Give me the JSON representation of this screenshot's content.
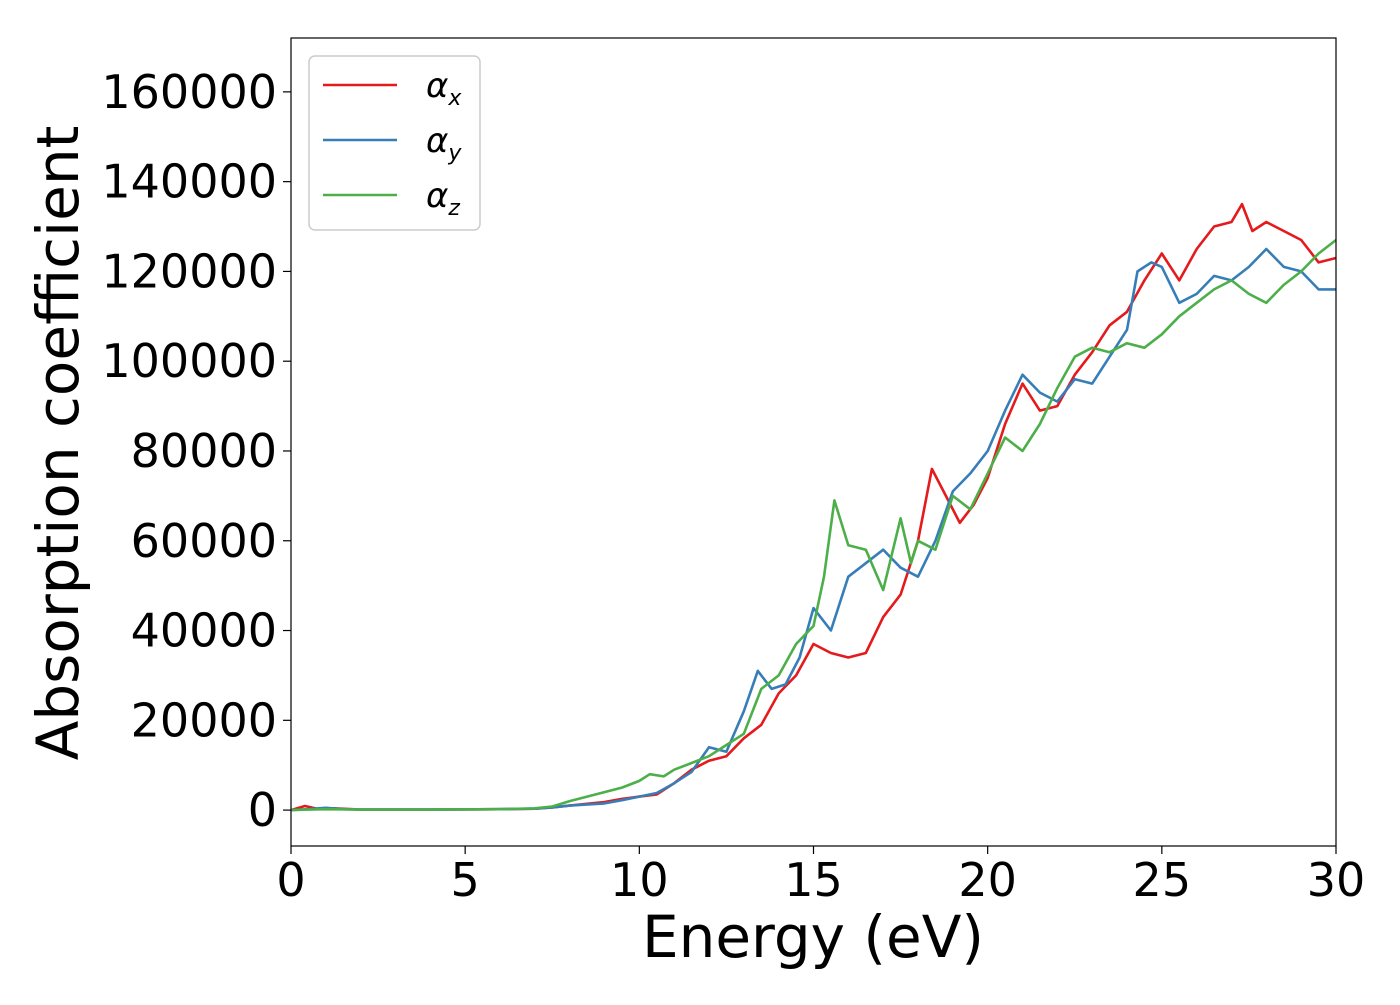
{
  "chart_data": {
    "type": "line",
    "title": "",
    "xlabel": "Energy (eV)",
    "ylabel": "Absorption coefficient",
    "xlim": [
      0,
      30
    ],
    "ylim": [
      -8000,
      172000
    ],
    "xticks": [
      0,
      5,
      10,
      15,
      20,
      25,
      30
    ],
    "xtick_labels": [
      "0",
      "5",
      "10",
      "15",
      "20",
      "25",
      "30"
    ],
    "yticks": [
      0,
      20000,
      40000,
      60000,
      80000,
      100000,
      120000,
      140000,
      160000
    ],
    "ytick_labels": [
      "0",
      "20000",
      "40000",
      "60000",
      "80000",
      "100000",
      "120000",
      "140000",
      "160000"
    ],
    "grid": false,
    "legend_position": "top-left",
    "series": [
      {
        "name": "αx",
        "legend_base": "α",
        "legend_sub": "x",
        "color": "#e41a1c",
        "points": [
          [
            0,
            0
          ],
          [
            0.4,
            900
          ],
          [
            0.8,
            200
          ],
          [
            1.2,
            400
          ],
          [
            2,
            100
          ],
          [
            4,
            100
          ],
          [
            6,
            200
          ],
          [
            7,
            300
          ],
          [
            7.5,
            600
          ],
          [
            8,
            1000
          ],
          [
            9,
            1800
          ],
          [
            9.5,
            2500
          ],
          [
            10,
            3000
          ],
          [
            10.5,
            3500
          ],
          [
            11,
            6000
          ],
          [
            11.5,
            9000
          ],
          [
            12,
            11000
          ],
          [
            12.5,
            12000
          ],
          [
            13,
            16000
          ],
          [
            13.5,
            19000
          ],
          [
            14,
            26000
          ],
          [
            14.5,
            30000
          ],
          [
            15,
            37000
          ],
          [
            15.5,
            35000
          ],
          [
            16,
            34000
          ],
          [
            16.5,
            35000
          ],
          [
            17,
            43000
          ],
          [
            17.5,
            48000
          ],
          [
            18,
            60000
          ],
          [
            18.4,
            76000
          ],
          [
            18.8,
            70000
          ],
          [
            19.2,
            64000
          ],
          [
            19.6,
            68000
          ],
          [
            20,
            74000
          ],
          [
            20.5,
            86000
          ],
          [
            21,
            95000
          ],
          [
            21.5,
            89000
          ],
          [
            22,
            90000
          ],
          [
            22.5,
            97000
          ],
          [
            23,
            102000
          ],
          [
            23.5,
            108000
          ],
          [
            24,
            111000
          ],
          [
            24.5,
            118000
          ],
          [
            25,
            124000
          ],
          [
            25.5,
            118000
          ],
          [
            26,
            125000
          ],
          [
            26.5,
            130000
          ],
          [
            27,
            131000
          ],
          [
            27.3,
            135000
          ],
          [
            27.6,
            129000
          ],
          [
            28,
            131000
          ],
          [
            28.5,
            129000
          ],
          [
            29,
            127000
          ],
          [
            29.5,
            122000
          ],
          [
            30,
            123000
          ]
        ]
      },
      {
        "name": "αy",
        "legend_base": "α",
        "legend_sub": "y",
        "color": "#377eb8",
        "points": [
          [
            0,
            0
          ],
          [
            0.5,
            200
          ],
          [
            1,
            500
          ],
          [
            1.5,
            200
          ],
          [
            2,
            100
          ],
          [
            4,
            100
          ],
          [
            6,
            200
          ],
          [
            7,
            300
          ],
          [
            7.5,
            600
          ],
          [
            8,
            1000
          ],
          [
            9,
            1500
          ],
          [
            9.5,
            2200
          ],
          [
            10,
            3000
          ],
          [
            10.5,
            3800
          ],
          [
            11,
            6000
          ],
          [
            11.5,
            8500
          ],
          [
            12,
            14000
          ],
          [
            12.5,
            13000
          ],
          [
            13,
            22000
          ],
          [
            13.4,
            31000
          ],
          [
            13.8,
            27000
          ],
          [
            14.2,
            28000
          ],
          [
            14.6,
            34000
          ],
          [
            15,
            45000
          ],
          [
            15.5,
            40000
          ],
          [
            16,
            52000
          ],
          [
            16.5,
            55000
          ],
          [
            17,
            58000
          ],
          [
            17.5,
            54000
          ],
          [
            18,
            52000
          ],
          [
            18.5,
            60000
          ],
          [
            19,
            71000
          ],
          [
            19.5,
            75000
          ],
          [
            20,
            80000
          ],
          [
            20.5,
            89000
          ],
          [
            21,
            97000
          ],
          [
            21.5,
            93000
          ],
          [
            22,
            91000
          ],
          [
            22.5,
            96000
          ],
          [
            23,
            95000
          ],
          [
            23.5,
            101000
          ],
          [
            24,
            107000
          ],
          [
            24.3,
            120000
          ],
          [
            24.7,
            122000
          ],
          [
            25,
            121000
          ],
          [
            25.5,
            113000
          ],
          [
            26,
            115000
          ],
          [
            26.5,
            119000
          ],
          [
            27,
            118000
          ],
          [
            27.5,
            121000
          ],
          [
            28,
            125000
          ],
          [
            28.5,
            121000
          ],
          [
            29,
            120000
          ],
          [
            29.5,
            116000
          ],
          [
            30,
            116000
          ]
        ]
      },
      {
        "name": "αz",
        "legend_base": "α",
        "legend_sub": "z",
        "color": "#4daf4a",
        "points": [
          [
            0,
            0
          ],
          [
            0.5,
            100
          ],
          [
            1,
            200
          ],
          [
            2,
            100
          ],
          [
            4,
            100
          ],
          [
            6,
            200
          ],
          [
            7,
            400
          ],
          [
            7.5,
            800
          ],
          [
            8,
            2000
          ],
          [
            8.5,
            3000
          ],
          [
            9,
            4000
          ],
          [
            9.5,
            5000
          ],
          [
            10,
            6500
          ],
          [
            10.3,
            8000
          ],
          [
            10.7,
            7500
          ],
          [
            11,
            9000
          ],
          [
            11.5,
            10500
          ],
          [
            12,
            12000
          ],
          [
            12.5,
            14500
          ],
          [
            13,
            17000
          ],
          [
            13.5,
            27000
          ],
          [
            14,
            30000
          ],
          [
            14.5,
            37000
          ],
          [
            15,
            41000
          ],
          [
            15.3,
            52000
          ],
          [
            15.6,
            69000
          ],
          [
            16,
            59000
          ],
          [
            16.5,
            58000
          ],
          [
            17,
            49000
          ],
          [
            17.5,
            65000
          ],
          [
            17.8,
            55000
          ],
          [
            18,
            60000
          ],
          [
            18.5,
            58000
          ],
          [
            19,
            70000
          ],
          [
            19.5,
            67000
          ],
          [
            20,
            75000
          ],
          [
            20.5,
            83000
          ],
          [
            21,
            80000
          ],
          [
            21.5,
            86000
          ],
          [
            22,
            94000
          ],
          [
            22.5,
            101000
          ],
          [
            23,
            103000
          ],
          [
            23.5,
            102000
          ],
          [
            24,
            104000
          ],
          [
            24.5,
            103000
          ],
          [
            25,
            106000
          ],
          [
            25.5,
            110000
          ],
          [
            26,
            113000
          ],
          [
            26.5,
            116000
          ],
          [
            27,
            118000
          ],
          [
            27.5,
            115000
          ],
          [
            28,
            113000
          ],
          [
            28.5,
            117000
          ],
          [
            29,
            120000
          ],
          [
            29.5,
            124000
          ],
          [
            30,
            127000
          ]
        ]
      }
    ]
  }
}
